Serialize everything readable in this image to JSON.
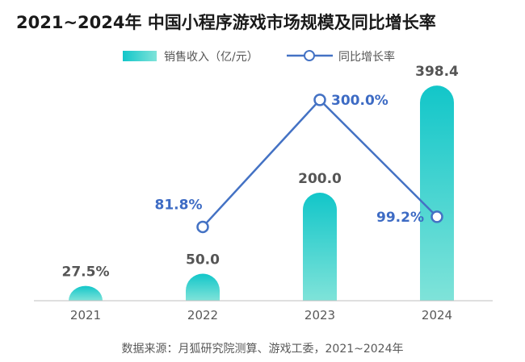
{
  "chart_data": {
    "type": "bar",
    "title": "2021~2024年 中国小程序游戏市场规模及同比增长率",
    "categories": [
      "2021",
      "2022",
      "2023",
      "2024"
    ],
    "series": [
      {
        "name": "销售收入（亿/元）",
        "kind": "bar",
        "values": [
          27.5,
          50.0,
          200.0,
          398.4
        ],
        "labels": [
          "27.5%",
          "50.0",
          "200.0",
          "398.4"
        ]
      },
      {
        "name": "同比增长率",
        "kind": "line",
        "axis": "secondary",
        "values": [
          null,
          81.8,
          300.0,
          99.2
        ],
        "labels": [
          "",
          "81.8%",
          "300.0%",
          "99.2%"
        ]
      }
    ],
    "ylim": [
      0,
      415
    ],
    "y2lim": [
      -45,
      340
    ],
    "legend": "top-right",
    "grid": false,
    "source": "数据来源：月狐研究院测算、游戏工委，2021~2024年"
  },
  "colors": {
    "bar_top": "#12c6c9",
    "bar_bottom": "#7fe3d9",
    "line": "#4472c4",
    "growth_text": "#3d6bc4",
    "axis": "#bfbfbf"
  }
}
